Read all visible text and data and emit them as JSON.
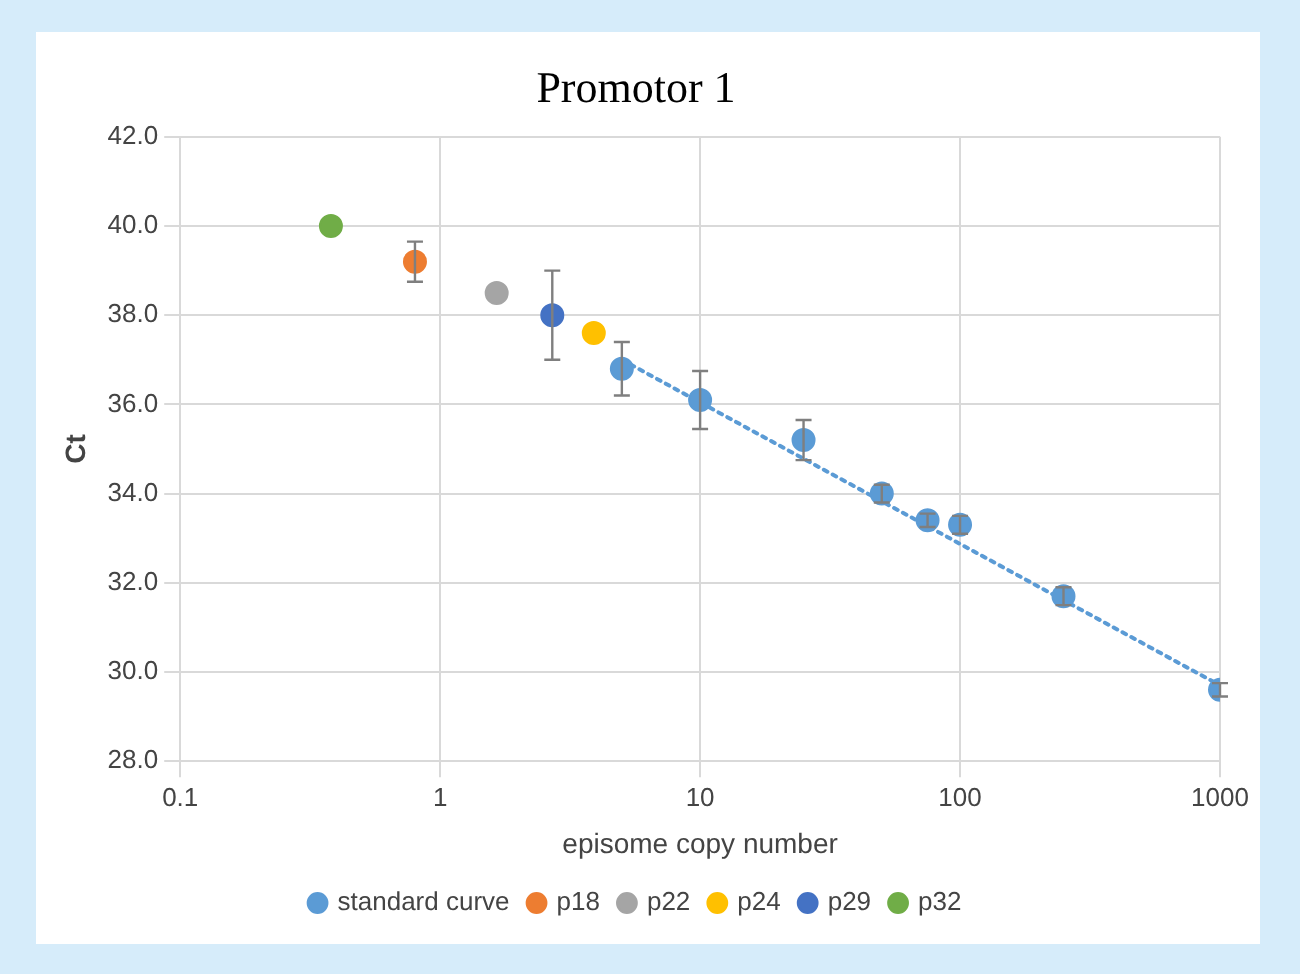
{
  "chart_data": {
    "type": "scatter",
    "title": "Promotor 1",
    "xlabel": "episome copy number",
    "ylabel": "Ct",
    "log": "x",
    "xlim": [
      0.1,
      1000
    ],
    "xticks": [
      0.1,
      1,
      10,
      100,
      1000
    ],
    "ylim": [
      28,
      42
    ],
    "yticks": [
      {
        "value": 28,
        "label": "28.0"
      },
      {
        "value": 30,
        "label": "30.0"
      },
      {
        "value": 32,
        "label": "32.0"
      },
      {
        "value": 34,
        "label": "34.0"
      },
      {
        "value": 36,
        "label": "36.0"
      },
      {
        "value": 38,
        "label": "38.0"
      },
      {
        "value": 40,
        "label": "40.0"
      },
      {
        "value": 42,
        "label": "42.0"
      }
    ],
    "grid": true,
    "legend": "bottom",
    "marker": "circle",
    "series": [
      {
        "name": "standard curve",
        "color": "#5b9bd5",
        "x": [
          5,
          10,
          25,
          50,
          75,
          100,
          250,
          1000
        ],
        "values": [
          36.8,
          36.1,
          35.2,
          34.0,
          33.4,
          33.3,
          31.7,
          29.6
        ],
        "errors": [
          0.6,
          0.65,
          0.45,
          0.2,
          0.15,
          0.2,
          0.2,
          0.15
        ]
      },
      {
        "name": "p18",
        "color": "#ed7d31",
        "x": [
          0.8
        ],
        "values": [
          39.2
        ],
        "errors": [
          0.45
        ]
      },
      {
        "name": "p22",
        "color": "#a5a5a5",
        "x": [
          1.65
        ],
        "values": [
          38.5
        ]
      },
      {
        "name": "p24",
        "color": "#ffc000",
        "x": [
          3.9
        ],
        "values": [
          37.6
        ]
      },
      {
        "name": "p29",
        "color": "#4472c4",
        "x": [
          2.7
        ],
        "values": [
          38.0
        ],
        "errors": [
          1.0
        ]
      },
      {
        "name": "p32",
        "color": "#70ad47",
        "x": [
          0.38
        ],
        "values": [
          40.0
        ]
      },
      {
        "type": "line",
        "color": "#5b9bd5",
        "line_style": "dotted",
        "marker": "none",
        "x": [
          5,
          1000
        ],
        "values": [
          37.0,
          29.7
        ]
      }
    ]
  }
}
